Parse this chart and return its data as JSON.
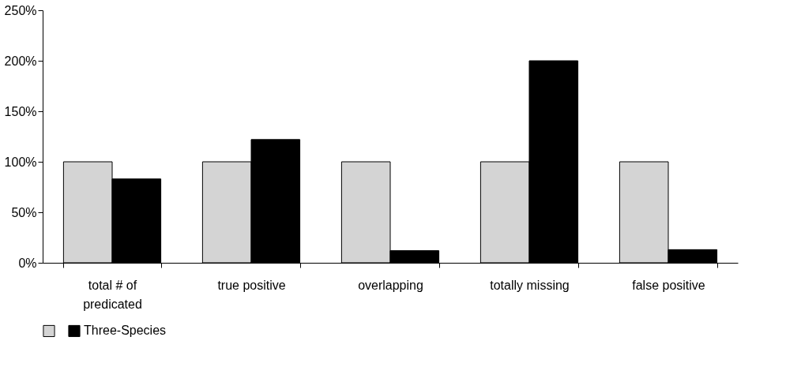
{
  "chart_data": {
    "type": "bar",
    "categories": [
      "total # of\npredicated",
      "true positive",
      "overlapping",
      "totally missing",
      "false positive"
    ],
    "series": [
      {
        "color": "#d4d4d4",
        "values": [
          100,
          100,
          100,
          100,
          100
        ]
      },
      {
        "name": "Three-Species",
        "color": "#000000",
        "values": [
          83,
          122,
          12,
          200,
          13
        ]
      }
    ],
    "ylim": [
      0,
      250
    ],
    "yticks": [
      {
        "value": 0,
        "label": "0%"
      },
      {
        "value": 50,
        "label": "50%"
      },
      {
        "value": 100,
        "label": "100%"
      },
      {
        "value": 150,
        "label": "150%"
      },
      {
        "value": 200,
        "label": "200%"
      },
      {
        "value": 250,
        "label": "250%"
      }
    ],
    "grid": false,
    "legend": "bottom"
  }
}
